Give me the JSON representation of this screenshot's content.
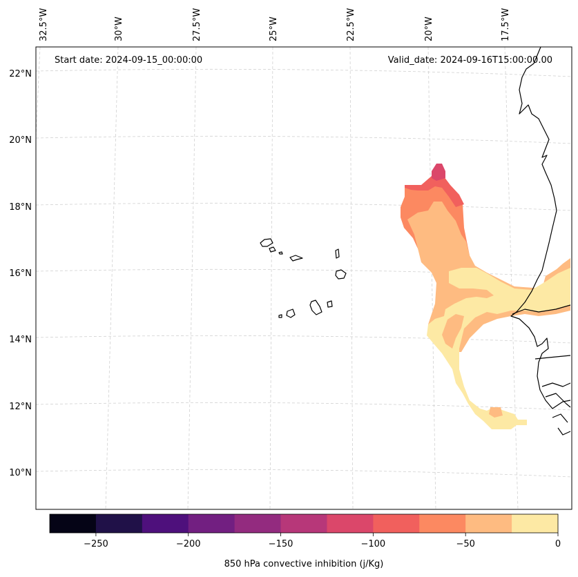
{
  "map": {
    "start_label": "Start date: 2024-09-15_00:00:00",
    "valid_label": "Valid_date: 2024-09-16T15:00:00.00",
    "lon_labels": [
      "32.5°W",
      "30°W",
      "27.5°W",
      "25°W",
      "22.5°W",
      "20°W",
      "17.5°W"
    ],
    "lat_labels": [
      "22°N",
      "20°N",
      "18°N",
      "16°N",
      "14°N",
      "12°N",
      "10°N"
    ],
    "gridlines": true,
    "coastline_color": "#000000",
    "gridline_color": "#cccccc"
  },
  "colorbar": {
    "label": "850 hPa convective inhibition (j/Kg)",
    "ticks": [
      -250,
      -200,
      -150,
      -100,
      -50,
      0
    ],
    "tick_labels": [
      "−250",
      "−200",
      "−150",
      "−100",
      "−50",
      "0"
    ],
    "range": [
      -275,
      0
    ],
    "bins": [
      {
        "from": -275,
        "to": -250,
        "color": "#050416"
      },
      {
        "from": -250,
        "to": -225,
        "color": "#201148"
      },
      {
        "from": -225,
        "to": -200,
        "color": "#4e107c"
      },
      {
        "from": -200,
        "to": -175,
        "color": "#721f81"
      },
      {
        "from": -175,
        "to": -150,
        "color": "#932b7f"
      },
      {
        "from": -150,
        "to": -125,
        "color": "#b73779"
      },
      {
        "from": -125,
        "to": -100,
        "color": "#db476a"
      },
      {
        "from": -100,
        "to": -75,
        "color": "#f1605d"
      },
      {
        "from": -75,
        "to": -50,
        "color": "#fc8961"
      },
      {
        "from": -50,
        "to": -25,
        "color": "#febb81"
      },
      {
        "from": -25,
        "to": 0,
        "color": "#fde9a4"
      }
    ]
  }
}
